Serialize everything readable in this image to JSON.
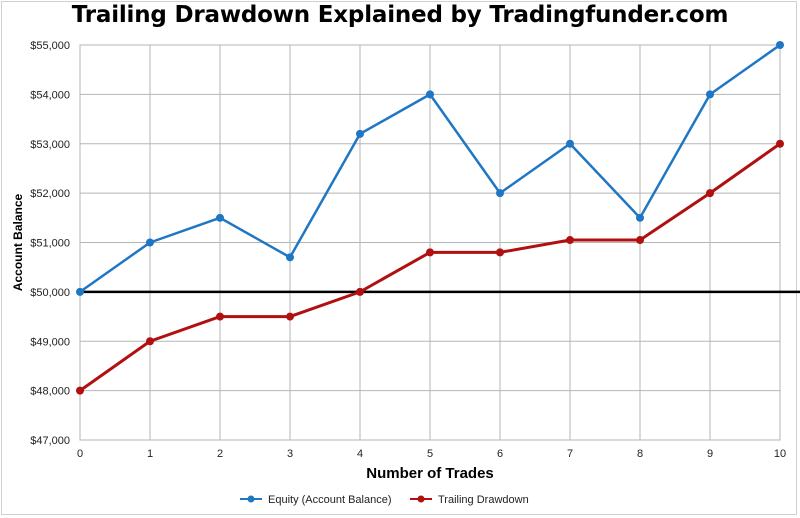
{
  "chart_data": {
    "type": "line",
    "title": "Trailing Drawdown Explained by Tradingfunder.com",
    "xlabel": "Number of Trades",
    "ylabel": "Account Balance",
    "x": [
      0,
      1,
      2,
      3,
      4,
      5,
      6,
      7,
      8,
      9,
      10
    ],
    "xlim": [
      0,
      10
    ],
    "ylim": [
      47000,
      55000
    ],
    "ytick_labels": [
      "$47,000",
      "$48,000",
      "$49,000",
      "$50,000",
      "$51,000",
      "$52,000",
      "$53,000",
      "$54,000",
      "$55,000"
    ],
    "xtick_labels": [
      "0",
      "1",
      "2",
      "3",
      "4",
      "5",
      "6",
      "7",
      "8",
      "9",
      "10"
    ],
    "grid": true,
    "reference_line": {
      "y": 50000,
      "color": "#000000"
    },
    "legend_position": "bottom-center",
    "series": [
      {
        "name": "Equity (Account Balance)",
        "color": "#1f77c4",
        "values": [
          50000,
          51000,
          51500,
          50700,
          53200,
          54000,
          52000,
          53000,
          51500,
          54000,
          55000
        ]
      },
      {
        "name": "Trailing Drawdown",
        "color": "#b01010",
        "values": [
          48000,
          49000,
          49500,
          49500,
          50000,
          50800,
          50800,
          51050,
          51050,
          52000,
          53000
        ]
      }
    ]
  }
}
